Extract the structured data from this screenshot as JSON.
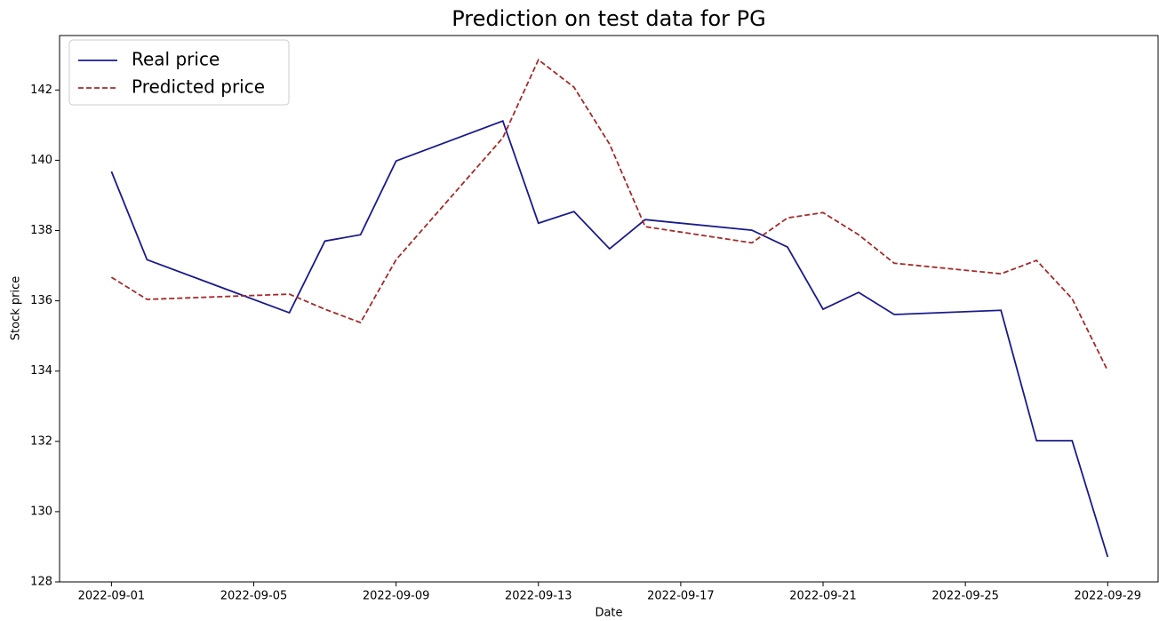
{
  "chart_data": {
    "type": "line",
    "title": "Prediction on test data for PG",
    "x_label": "Date",
    "y_label": "Stock price",
    "x": [
      "2022-09-01",
      "2022-09-02",
      "2022-09-06",
      "2022-09-07",
      "2022-09-08",
      "2022-09-09",
      "2022-09-12",
      "2022-09-13",
      "2022-09-14",
      "2022-09-15",
      "2022-09-16",
      "2022-09-19",
      "2022-09-20",
      "2022-09-21",
      "2022-09-22",
      "2022-09-23",
      "2022-09-26",
      "2022-09-27",
      "2022-09-28",
      "2022-09-29"
    ],
    "series": [
      {
        "name": "Real price",
        "color": "#1a1a8c",
        "dash": "solid",
        "values": [
          139.68,
          137.17,
          135.66,
          137.7,
          137.88,
          139.98,
          141.12,
          138.21,
          138.54,
          137.48,
          138.31,
          138.01,
          137.53,
          135.76,
          136.24,
          135.61,
          135.73,
          132.02,
          132.02,
          128.71
        ]
      },
      {
        "name": "Predicted price",
        "color": "#a52a2a",
        "dash": "dashed",
        "values": [
          136.67,
          136.04,
          136.19,
          135.76,
          135.38,
          137.17,
          140.64,
          142.86,
          142.08,
          140.46,
          138.11,
          137.65,
          138.36,
          138.51,
          137.88,
          137.07,
          136.77,
          137.15,
          136.06,
          134.01
        ]
      }
    ],
    "xlim": [
      "2022-08-30T13:00Z",
      "2022-09-30T10:00Z"
    ],
    "xticks": [
      "2022-09-01",
      "2022-09-05",
      "2022-09-09",
      "2022-09-13",
      "2022-09-17",
      "2022-09-21",
      "2022-09-25",
      "2022-09-29"
    ],
    "ylim": [
      128,
      143.55
    ],
    "yticks": [
      128,
      130,
      132,
      134,
      136,
      138,
      140,
      142
    ],
    "legend": "upper left",
    "grid": false
  }
}
